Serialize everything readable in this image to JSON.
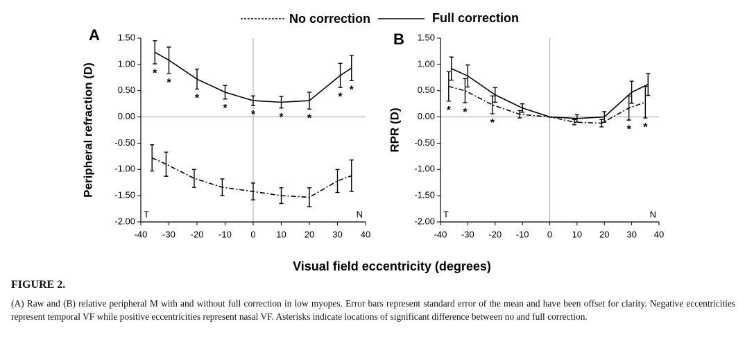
{
  "chart_data": [
    {
      "type": "line",
      "panel": "A",
      "ylabel": "Peripheral refraction (D)",
      "xlabel": "Visual field eccentricity (degrees)",
      "xlim": [
        -40,
        40
      ],
      "xticks": [
        -40,
        -30,
        -20,
        -10,
        0,
        10,
        20,
        30,
        40
      ],
      "ylim": [
        -2,
        1.5
      ],
      "yticks": [
        {
          "value": 1.5,
          "label": "1.50"
        },
        {
          "value": 1,
          "label": "1.00"
        },
        {
          "value": 0.5,
          "label": "0.50"
        },
        {
          "value": 0,
          "label": "0.00"
        },
        {
          "value": -0.5,
          "label": "-0.50"
        },
        {
          "value": -1,
          "label": "-1.00"
        },
        {
          "value": -1.5,
          "label": "-1.50"
        },
        {
          "value": -2,
          "label": "-2.00"
        }
      ],
      "corner_labels": [
        "T",
        "N"
      ],
      "significance_marker": "*",
      "significant_x": [
        -35,
        -30,
        -20,
        -10,
        0,
        10,
        20,
        31,
        35
      ],
      "series": [
        {
          "name": "No correction",
          "color": "#000000",
          "line_style": "dashdot",
          "x": [
            -36,
            -31,
            -21,
            -11,
            0,
            10,
            20,
            30,
            35
          ],
          "values": [
            -0.78,
            -0.9,
            -1.17,
            -1.34,
            -1.42,
            -1.5,
            -1.53,
            -1.22,
            -1.12
          ],
          "errors": [
            0.25,
            0.23,
            0.17,
            0.16,
            0.16,
            0.15,
            0.18,
            0.22,
            0.3
          ]
        },
        {
          "name": "Full correction",
          "color": "#000000",
          "line_style": "solid",
          "x": [
            -35,
            -30,
            -20,
            -10,
            0,
            10,
            20,
            31,
            35
          ],
          "values": [
            1.23,
            1.08,
            0.72,
            0.47,
            0.31,
            0.28,
            0.31,
            0.79,
            0.93
          ],
          "errors": [
            0.22,
            0.25,
            0.19,
            0.13,
            0.09,
            0.11,
            0.16,
            0.23,
            0.24
          ]
        }
      ]
    },
    {
      "type": "line",
      "panel": "B",
      "ylabel": "RPR (D)",
      "xlim": [
        -40,
        40
      ],
      "xticks": [
        -40,
        -30,
        -20,
        -10,
        0,
        10,
        20,
        30,
        40
      ],
      "ylim": [
        -2,
        1.5
      ],
      "yticks": [
        {
          "value": 1.5,
          "label": "1.50"
        },
        {
          "value": 1,
          "label": "1.00"
        },
        {
          "value": 0.5,
          "label": "0.50"
        },
        {
          "value": 0,
          "label": "0.00"
        },
        {
          "value": -0.5,
          "label": "-0.50"
        },
        {
          "value": -1,
          "label": "-1.00"
        },
        {
          "value": -1.5,
          "label": "-1.50"
        },
        {
          "value": -2,
          "label": "-2.00"
        }
      ],
      "corner_labels": [
        "T",
        "N"
      ],
      "significance_marker": "*",
      "significant_x": [
        -37,
        -31,
        -21,
        29,
        35
      ],
      "series": [
        {
          "name": "No correction",
          "color": "#000000",
          "line_style": "dashdot",
          "x": [
            -37,
            -31,
            -21,
            -11,
            0,
            9,
            19,
            29,
            35
          ],
          "values": [
            0.58,
            0.5,
            0.23,
            0.05,
            0,
            -0.1,
            -0.12,
            0.17,
            0.28
          ],
          "errors": [
            0.28,
            0.23,
            0.17,
            0.07,
            0,
            0.05,
            0.07,
            0.23,
            0.3
          ]
        },
        {
          "name": "Full correction",
          "color": "#000000",
          "line_style": "solid",
          "x": [
            -36,
            -30,
            -20,
            -10,
            0,
            10,
            20,
            30,
            36
          ],
          "values": [
            0.92,
            0.78,
            0.42,
            0.17,
            0,
            -0.03,
            0.0,
            0.47,
            0.62
          ],
          "errors": [
            0.22,
            0.21,
            0.14,
            0.08,
            0,
            0.07,
            0.1,
            0.21,
            0.21
          ]
        }
      ]
    }
  ],
  "figure": {
    "label": "FIGURE 2.",
    "caption": "(A) Raw and (B) relative peripheral M with and without full correction in low myopes. Error bars represent standard error of the mean and have been offset for clarity. Negative eccentricities represent temporal VF while positive eccentricities represent nasal VF. Asterisks indicate locations of significant difference between no and full correction."
  }
}
